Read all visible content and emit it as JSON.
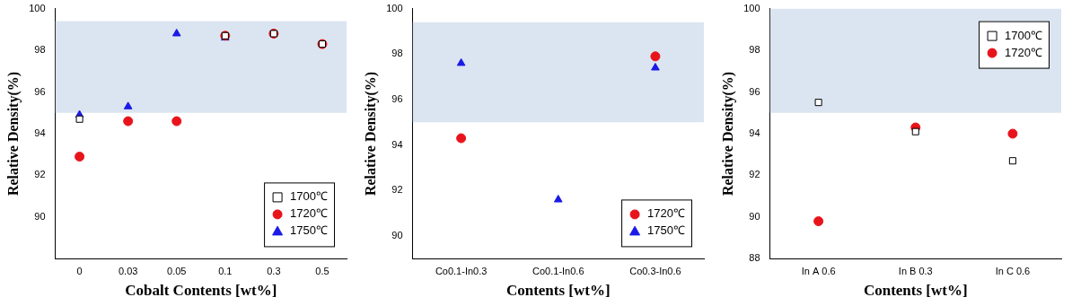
{
  "chart_data": [
    {
      "type": "scatter",
      "x_label": "Cobalt Contents [wt%]",
      "y_label": "Relative Density(%)",
      "categories": [
        "0",
        "0.03",
        "0.05",
        "0.1",
        "0.3",
        "0.5"
      ],
      "series": [
        {
          "name": "1700℃",
          "color": "#000000",
          "marker": "square_open",
          "values": [
            94.7,
            null,
            null,
            98.7,
            98.8,
            98.3
          ]
        },
        {
          "name": "1720℃",
          "color": "#e8141b",
          "marker": "circle",
          "values": [
            92.9,
            94.6,
            94.6,
            98.7,
            98.8,
            98.3
          ]
        },
        {
          "name": "1750℃",
          "color": "#1a1ae6",
          "marker": "triangle",
          "values": [
            94.9,
            95.3,
            98.8,
            98.6,
            null,
            null
          ]
        }
      ],
      "shaded_range": [
        95,
        99.4
      ],
      "ylim": [
        88,
        100
      ],
      "yticks": [
        90,
        92,
        94,
        96,
        98,
        100
      ],
      "grid": false,
      "legend": "lower right"
    },
    {
      "type": "scatter",
      "x_label": "Contents [wt%]",
      "y_label": "Relative Density(%)",
      "categories": [
        "Co0.1-In0.3",
        "Co0.1-In0.6",
        "Co0.3-In0.6"
      ],
      "series": [
        {
          "name": "1720℃",
          "color": "#e8141b",
          "marker": "circle",
          "values": [
            94.3,
            null,
            97.9
          ]
        },
        {
          "name": "1750℃",
          "color": "#1a1ae6",
          "marker": "triangle",
          "values": [
            97.6,
            91.6,
            97.4
          ]
        }
      ],
      "shaded_range": [
        95,
        99.4
      ],
      "ylim": [
        89,
        100
      ],
      "yticks": [
        90,
        92,
        94,
        96,
        98,
        100
      ],
      "grid": false,
      "legend": "lower right"
    },
    {
      "type": "scatter",
      "x_label": "Contents [wt%]",
      "y_label": "Relative Density(%)",
      "categories": [
        "In A 0.6",
        "In B 0.3",
        "In C 0.6"
      ],
      "series": [
        {
          "name": "1700℃",
          "color": "#000000",
          "marker": "square_open",
          "values": [
            95.5,
            94.1,
            92.7
          ]
        },
        {
          "name": "1720℃",
          "color": "#e8141b",
          "marker": "circle",
          "values": [
            89.8,
            94.3,
            94.0
          ]
        }
      ],
      "shaded_range": [
        95,
        100
      ],
      "ylim": [
        88,
        100
      ],
      "yticks": [
        88,
        90,
        92,
        94,
        96,
        98,
        100
      ],
      "grid": false,
      "legend": "upper right"
    }
  ]
}
